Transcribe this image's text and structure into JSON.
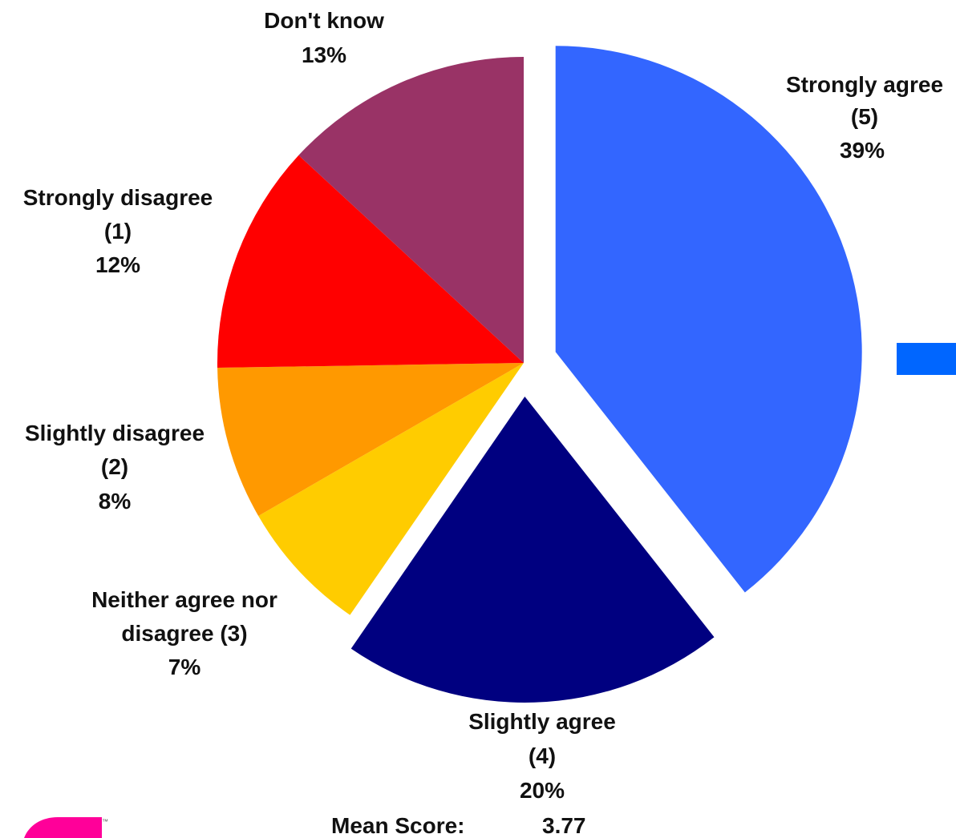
{
  "chart_data": {
    "type": "pie",
    "slices": [
      {
        "label": "Strongly agree",
        "code": "(5)",
        "value": 39,
        "value_label": "39%",
        "color": "#3366FF",
        "exploded": true
      },
      {
        "label": "Slightly agree",
        "code": "(4)",
        "value": 20,
        "value_label": "20%",
        "color": "#000080",
        "exploded": true
      },
      {
        "label": "Neither agree nor",
        "code": "disagree (3)",
        "value": 7,
        "value_label": "7%",
        "color": "#FFCC00",
        "exploded": false
      },
      {
        "label": "Slightly disagree",
        "code": "(2)",
        "value": 8,
        "value_label": "8%",
        "color": "#FF9900",
        "exploded": false
      },
      {
        "label": "Strongly disagree",
        "code": "(1)",
        "value": 12,
        "value_label": "12%",
        "color": "#FF0000",
        "exploded": false
      },
      {
        "label": "Don't know",
        "code": "",
        "value": 13,
        "value_label": "13%",
        "color": "#993366",
        "exploded": false
      }
    ],
    "mean_score_label": "Mean Score:",
    "mean_score_value": "3.77",
    "legend_swatch_color": "#0066FF",
    "logo_color": "#FF0099"
  }
}
